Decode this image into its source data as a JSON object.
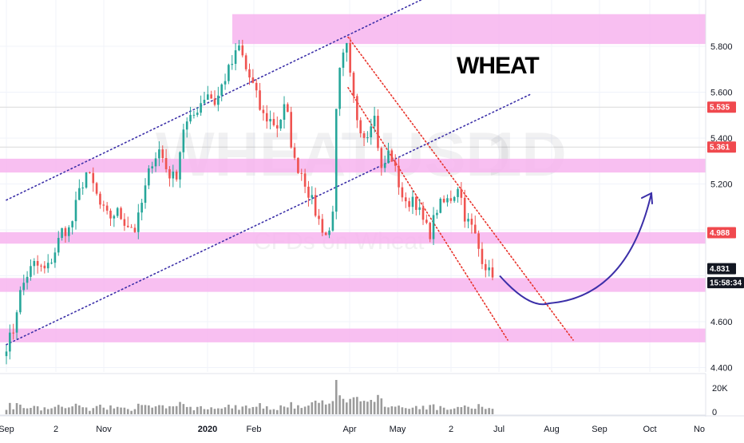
{
  "chart_data": {
    "type": "candlestick",
    "title": "WHEAT",
    "watermark": {
      "symbol": "WHEATUSD",
      "interval": "1D",
      "description": "CFDs on Wheat"
    },
    "y_axis": {
      "ticks": [
        5.8,
        5.6,
        5.4,
        5.2,
        5.0,
        4.8,
        4.6,
        4.4
      ],
      "tick_labels": [
        "5.800",
        "5.600",
        "5.400",
        "5.200",
        "",
        "",
        "4.600",
        "4.400"
      ],
      "ylim": [
        4.37,
        6.02
      ]
    },
    "x_axis": {
      "ticks": [
        "Sep",
        "2",
        "Nov",
        "2020",
        "Feb",
        "Apr",
        "May",
        "2",
        "Jul",
        "Aug",
        "Sep",
        "Oct",
        "No"
      ],
      "tick_days": [
        0,
        62,
        122,
        252,
        310,
        430,
        490,
        557,
        617,
        683,
        743,
        806,
        868
      ]
    },
    "price_tags": [
      {
        "value": 5.535,
        "label": "5.535",
        "color": "#f0494e"
      },
      {
        "value": 5.361,
        "label": "5.361",
        "color": "#f0494e"
      },
      {
        "value": 4.988,
        "label": "4.988",
        "color": "#f0494e"
      },
      {
        "value": 4.831,
        "label": "4.831",
        "color": "#131722"
      },
      {
        "value": 4.77,
        "label": "15:58:34",
        "color": "#131722"
      }
    ],
    "zones": [
      {
        "from": 5.81,
        "to": 5.94,
        "start_day": 283
      },
      {
        "from": 5.25,
        "to": 5.31,
        "start_day": 0
      },
      {
        "from": 4.94,
        "to": 4.99,
        "start_day": 0
      },
      {
        "from": 4.73,
        "to": 4.79,
        "start_day": 0
      },
      {
        "from": 4.51,
        "to": 4.57,
        "start_day": 0
      }
    ],
    "trend_lines": [
      {
        "color": "#3b2fa8",
        "dash": "blue-dotted",
        "points": [
          [
            0,
            5.13
          ],
          [
            530,
            6.02
          ]
        ]
      },
      {
        "color": "#3b2fa8",
        "dash": "blue-dotted",
        "points": [
          [
            0,
            4.5
          ],
          [
            656,
            5.59
          ]
        ]
      },
      {
        "color": "#e8322a",
        "dash": "red-dotted",
        "points": [
          [
            428,
            5.84
          ],
          [
            710,
            4.52
          ]
        ]
      },
      {
        "color": "#e8322a",
        "dash": "red-dotted",
        "points": [
          [
            428,
            5.62
          ],
          [
            628,
            4.52
          ]
        ]
      }
    ],
    "projection": {
      "color": "#3b2fa8",
      "start": [
        618,
        4.8
      ],
      "low": [
        670,
        4.68
      ],
      "end": [
        808,
        5.16
      ]
    },
    "anchors": [
      [
        0,
        4.5
      ],
      [
        8,
        4.55
      ],
      [
        15,
        4.7
      ],
      [
        25,
        4.8
      ],
      [
        35,
        4.85
      ],
      [
        50,
        4.82
      ],
      [
        60,
        4.9
      ],
      [
        70,
        5.0
      ],
      [
        80,
        5.0
      ],
      [
        90,
        5.15
      ],
      [
        100,
        5.25
      ],
      [
        108,
        5.2
      ],
      [
        118,
        5.1
      ],
      [
        128,
        5.05
      ],
      [
        138,
        5.08
      ],
      [
        150,
        5.03
      ],
      [
        162,
        5.0
      ],
      [
        172,
        5.15
      ],
      [
        182,
        5.3
      ],
      [
        192,
        5.35
      ],
      [
        202,
        5.25
      ],
      [
        212,
        5.22
      ],
      [
        222,
        5.45
      ],
      [
        232,
        5.48
      ],
      [
        242,
        5.55
      ],
      [
        252,
        5.6
      ],
      [
        262,
        5.55
      ],
      [
        272,
        5.65
      ],
      [
        282,
        5.72
      ],
      [
        292,
        5.8
      ],
      [
        300,
        5.7
      ],
      [
        310,
        5.62
      ],
      [
        320,
        5.5
      ],
      [
        330,
        5.48
      ],
      [
        340,
        5.45
      ],
      [
        350,
        5.55
      ],
      [
        360,
        5.3
      ],
      [
        370,
        5.25
      ],
      [
        380,
        5.15
      ],
      [
        390,
        5.05
      ],
      [
        400,
        4.98
      ],
      [
        408,
        5.0
      ],
      [
        412,
        5.45
      ],
      [
        418,
        5.7
      ],
      [
        426,
        5.8
      ],
      [
        432,
        5.62
      ],
      [
        440,
        5.48
      ],
      [
        450,
        5.4
      ],
      [
        460,
        5.52
      ],
      [
        470,
        5.25
      ],
      [
        480,
        5.35
      ],
      [
        490,
        5.22
      ],
      [
        500,
        5.1
      ],
      [
        510,
        5.15
      ],
      [
        520,
        5.05
      ],
      [
        530,
        4.98
      ],
      [
        540,
        5.1
      ],
      [
        550,
        5.12
      ],
      [
        560,
        5.15
      ],
      [
        566,
        5.2
      ],
      [
        575,
        5.05
      ],
      [
        585,
        5.0
      ],
      [
        593,
        4.9
      ],
      [
        600,
        4.85
      ],
      [
        606,
        4.8
      ],
      [
        612,
        4.83
      ]
    ],
    "volume": {
      "label": "20K",
      "zero_label": "0",
      "color": "#7a7a7a"
    }
  }
}
